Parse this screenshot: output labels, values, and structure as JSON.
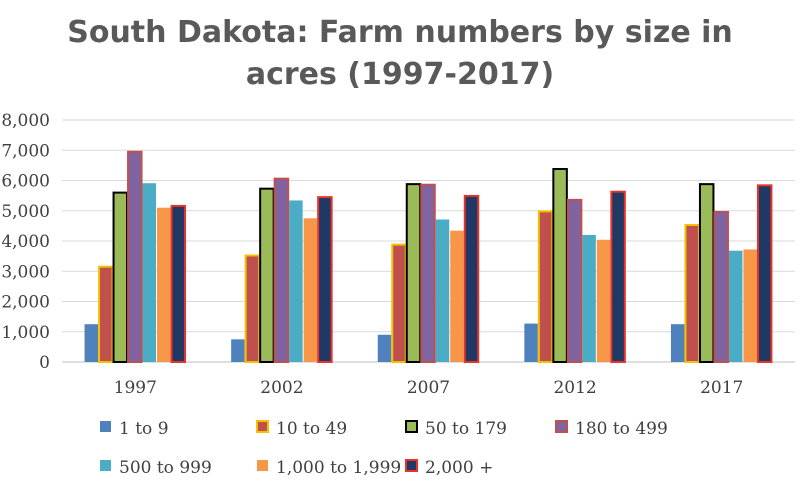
{
  "chart_data": {
    "type": "bar",
    "title_line1": "South Dakota: Farm numbers by size in",
    "title_line2": "acres (1997-2017)",
    "categories": [
      "1997",
      "2002",
      "2007",
      "2012",
      "2017"
    ],
    "ylim": [
      0,
      8000
    ],
    "yticks": [
      "0",
      "1,000",
      "2,000",
      "3,000",
      "4,000",
      "5,000",
      "6,000",
      "7,000",
      "8,000"
    ],
    "grid": true,
    "legend_position": "bottom",
    "series": [
      {
        "name": "1 to 9",
        "color": "#4F81BD",
        "border": "none",
        "values": [
          1250,
          750,
          900,
          1270,
          1250
        ]
      },
      {
        "name": "10 to 49",
        "color": "#C0504D",
        "border": "#F2C100",
        "values": [
          3150,
          3520,
          3880,
          4980,
          4530
        ]
      },
      {
        "name": "50 to 179",
        "color": "#9BBB59",
        "border": "#000000",
        "values": [
          5600,
          5730,
          5880,
          6380,
          5880
        ]
      },
      {
        "name": "180 to 499",
        "color": "#8064A2",
        "border": "#C0504D",
        "values": [
          6950,
          6060,
          5860,
          5360,
          4960
        ]
      },
      {
        "name": "500 to 999",
        "color": "#4BACC6",
        "border": "none",
        "values": [
          5910,
          5340,
          4710,
          4200,
          3680
        ]
      },
      {
        "name": "1,000 to 1,999",
        "color": "#F79646",
        "border": "none",
        "values": [
          5100,
          4750,
          4340,
          4040,
          3720
        ]
      },
      {
        "name": "2,000 +",
        "color": "#1F3864",
        "border": "#E8332A",
        "values": [
          5160,
          5450,
          5490,
          5630,
          5840
        ]
      }
    ]
  }
}
